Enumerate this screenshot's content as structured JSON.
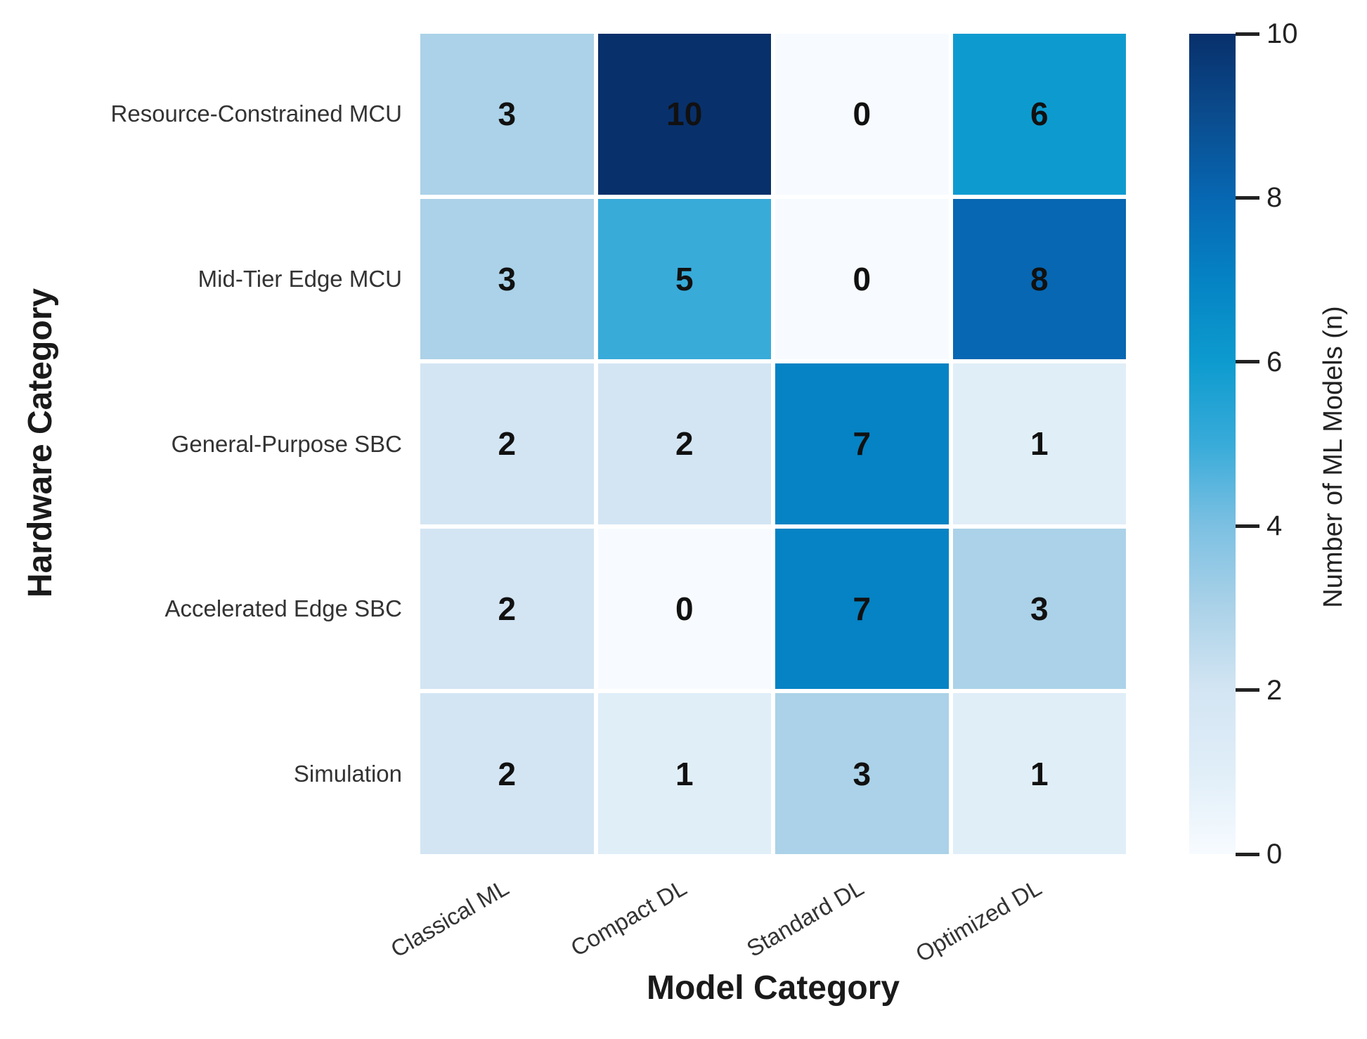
{
  "chart_data": {
    "type": "heatmap",
    "xlabel": "Model Category",
    "ylabel": "Hardware Category",
    "x_categories": [
      "Classical ML",
      "Compact DL",
      "Standard DL",
      "Optimized DL"
    ],
    "y_categories": [
      "Resource-Constrained MCU",
      "Mid-Tier Edge MCU",
      "General-Purpose SBC",
      "Accelerated Edge SBC",
      "Simulation"
    ],
    "values": [
      [
        3,
        10,
        0,
        6
      ],
      [
        3,
        5,
        0,
        8
      ],
      [
        2,
        2,
        7,
        1
      ],
      [
        2,
        0,
        7,
        3
      ],
      [
        2,
        1,
        3,
        1
      ]
    ],
    "colorbar": {
      "label": "Number of ML Models (n)",
      "ticks": [
        0,
        2,
        4,
        6,
        8,
        10
      ],
      "min": 0,
      "max": 10
    },
    "colormap_stops": [
      {
        "value": 0,
        "color": "#f7fbff"
      },
      {
        "value": 1,
        "color": "#e0eef8"
      },
      {
        "value": 2,
        "color": "#d3e5f3"
      },
      {
        "value": 3,
        "color": "#abd2e8"
      },
      {
        "value": 4,
        "color": "#7cc0e2"
      },
      {
        "value": 5,
        "color": "#38abd9"
      },
      {
        "value": 6,
        "color": "#0d9bcf"
      },
      {
        "value": 7,
        "color": "#0583c4"
      },
      {
        "value": 8,
        "color": "#0767b2"
      },
      {
        "value": 9,
        "color": "#0a4c8e"
      },
      {
        "value": 10,
        "color": "#08306b"
      }
    ],
    "grid_gap_color": "#ffffff",
    "value_text_color": "#111111",
    "tick_label_color": "#333333"
  }
}
